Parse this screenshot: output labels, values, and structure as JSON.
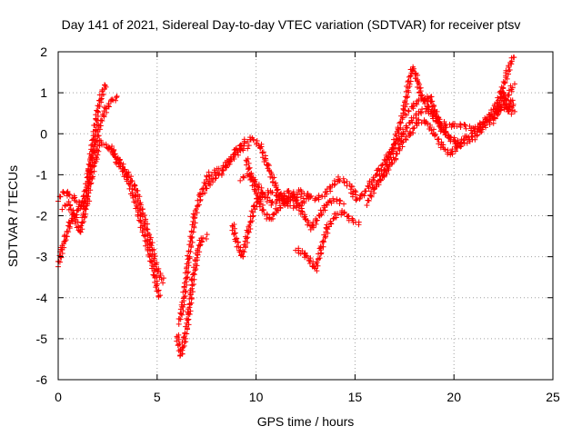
{
  "chart_data": {
    "type": "scatter",
    "title": "Day 141 of 2021, Sidereal Day-to-day VTEC variation (SDTVAR) for receiver ptsv",
    "xlabel": "GPS time / hours",
    "ylabel": "SDTVAR / TECUs",
    "xlim": [
      0,
      25
    ],
    "ylim": [
      -6,
      2
    ],
    "xticks": [
      "0",
      "5",
      "10",
      "15",
      "20",
      "25"
    ],
    "yticks": [
      "-6",
      "-5",
      "-4",
      "-3",
      "-2",
      "-1",
      "0",
      "1",
      "2"
    ],
    "grid": true,
    "marker": "+",
    "color": "#ff0000",
    "series": [
      {
        "segments": [
          [
            [
              0.0,
              -1.6
            ],
            [
              0.3,
              -1.4
            ],
            [
              0.6,
              -1.5
            ],
            [
              0.9,
              -1.6
            ],
            [
              1.2,
              -1.8
            ],
            [
              1.5,
              -1.5
            ],
            [
              1.7,
              -1.0
            ],
            [
              1.9,
              -0.6
            ],
            [
              2.1,
              -0.2
            ],
            [
              2.4,
              -0.3
            ],
            [
              2.7,
              -0.4
            ],
            [
              3.0,
              -0.7
            ],
            [
              3.4,
              -1.0
            ],
            [
              3.8,
              -1.5
            ],
            [
              4.2,
              -2.2
            ],
            [
              4.6,
              -2.9
            ],
            [
              4.9,
              -3.5
            ],
            [
              5.1,
              -4.0
            ]
          ],
          [
            [
              0.0,
              -3.2
            ],
            [
              0.2,
              -2.8
            ],
            [
              0.4,
              -2.5
            ],
            [
              0.6,
              -2.2
            ],
            [
              0.8,
              -2.0
            ],
            [
              1.1,
              -1.8
            ],
            [
              1.3,
              -1.6
            ],
            [
              1.5,
              -1.1
            ],
            [
              1.7,
              -0.4
            ],
            [
              1.9,
              0.3
            ],
            [
              2.1,
              0.8
            ],
            [
              2.3,
              1.1
            ],
            [
              2.4,
              1.2
            ]
          ],
          [
            [
              1.5,
              -1.0
            ],
            [
              1.8,
              -0.4
            ],
            [
              2.1,
              0.2
            ],
            [
              2.4,
              0.6
            ],
            [
              2.7,
              0.8
            ],
            [
              3.0,
              0.9
            ]
          ],
          [
            [
              2.6,
              -0.3
            ],
            [
              3.0,
              -0.6
            ],
            [
              3.4,
              -0.9
            ],
            [
              3.9,
              -1.3
            ],
            [
              4.3,
              -2.0
            ],
            [
              4.7,
              -2.7
            ],
            [
              5.0,
              -3.3
            ],
            [
              5.3,
              -3.6
            ]
          ],
          [
            [
              0.2,
              -1.8
            ],
            [
              0.5,
              -1.7
            ],
            [
              0.8,
              -2.0
            ],
            [
              1.1,
              -2.4
            ],
            [
              1.3,
              -2.0
            ],
            [
              1.5,
              -1.6
            ]
          ],
          [
            [
              6.0,
              -4.9
            ],
            [
              6.2,
              -5.4
            ],
            [
              6.4,
              -5.0
            ],
            [
              6.6,
              -4.4
            ],
            [
              6.8,
              -3.6
            ],
            [
              7.0,
              -3.0
            ],
            [
              7.2,
              -2.6
            ],
            [
              7.5,
              -2.5
            ]
          ],
          [
            [
              6.1,
              -4.6
            ],
            [
              6.3,
              -4.2
            ],
            [
              6.6,
              -3.0
            ],
            [
              6.9,
              -2.0
            ],
            [
              7.2,
              -1.5
            ],
            [
              7.6,
              -1.0
            ],
            [
              8.0,
              -0.9
            ],
            [
              8.4,
              -0.8
            ],
            [
              8.8,
              -0.6
            ],
            [
              9.2,
              -0.4
            ],
            [
              9.6,
              -0.3
            ]
          ],
          [
            [
              7.4,
              -1.4
            ],
            [
              7.8,
              -1.1
            ],
            [
              8.2,
              -1.0
            ],
            [
              8.6,
              -0.7
            ],
            [
              9.0,
              -0.4
            ],
            [
              9.4,
              -0.2
            ],
            [
              9.8,
              -0.1
            ],
            [
              10.2,
              -0.3
            ],
            [
              10.6,
              -0.8
            ],
            [
              11.0,
              -1.3
            ],
            [
              11.4,
              -1.6
            ],
            [
              11.8,
              -1.6
            ],
            [
              12.2,
              -1.5
            ]
          ],
          [
            [
              8.8,
              -2.2
            ],
            [
              9.0,
              -2.6
            ],
            [
              9.3,
              -3.0
            ],
            [
              9.6,
              -2.4
            ],
            [
              9.9,
              -1.8
            ],
            [
              10.3,
              -1.5
            ],
            [
              10.7,
              -1.4
            ],
            [
              11.1,
              -1.5
            ],
            [
              11.5,
              -1.7
            ],
            [
              11.9,
              -1.8
            ],
            [
              12.3,
              -1.7
            ],
            [
              12.7,
              -1.5
            ]
          ],
          [
            [
              9.5,
              -0.6
            ],
            [
              9.8,
              -1.1
            ],
            [
              10.1,
              -1.6
            ],
            [
              10.4,
              -1.9
            ],
            [
              10.7,
              -2.1
            ],
            [
              11.0,
              -1.9
            ],
            [
              11.4,
              -1.7
            ],
            [
              11.8,
              -1.5
            ],
            [
              12.2,
              -1.4
            ],
            [
              12.6,
              -1.5
            ],
            [
              13.0,
              -1.6
            ],
            [
              13.4,
              -1.5
            ],
            [
              13.8,
              -1.3
            ],
            [
              14.2,
              -1.1
            ],
            [
              14.6,
              -1.2
            ],
            [
              15.0,
              -1.4
            ]
          ],
          [
            [
              9.2,
              -1.1
            ],
            [
              9.6,
              -1.0
            ],
            [
              10.0,
              -1.2
            ],
            [
              10.4,
              -1.5
            ],
            [
              10.8,
              -1.7
            ],
            [
              11.2,
              -1.6
            ],
            [
              11.6,
              -1.4
            ],
            [
              12.0,
              -1.6
            ],
            [
              12.4,
              -2.0
            ],
            [
              12.8,
              -2.3
            ],
            [
              13.2,
              -2.0
            ],
            [
              13.6,
              -1.7
            ],
            [
              14.0,
              -1.6
            ],
            [
              14.4,
              -1.7
            ]
          ],
          [
            [
              12.0,
              -2.8
            ],
            [
              12.3,
              -2.9
            ],
            [
              12.6,
              -3.0
            ],
            [
              13.0,
              -3.3
            ],
            [
              13.3,
              -2.8
            ],
            [
              13.6,
              -2.3
            ],
            [
              14.0,
              -2.0
            ],
            [
              14.4,
              -1.9
            ],
            [
              14.8,
              -2.1
            ],
            [
              15.2,
              -2.2
            ]
          ],
          [
            [
              14.8,
              -1.4
            ],
            [
              15.1,
              -1.6
            ],
            [
              15.4,
              -1.5
            ],
            [
              15.8,
              -1.2
            ],
            [
              16.2,
              -0.9
            ],
            [
              16.6,
              -0.6
            ],
            [
              17.0,
              -0.3
            ],
            [
              17.4,
              0.0
            ],
            [
              17.8,
              0.3
            ],
            [
              18.2,
              0.5
            ],
            [
              18.6,
              0.6
            ],
            [
              19.0,
              0.4
            ],
            [
              19.4,
              0.1
            ],
            [
              19.8,
              -0.1
            ],
            [
              20.2,
              -0.2
            ],
            [
              20.6,
              -0.1
            ],
            [
              21.0,
              0.0
            ],
            [
              21.4,
              0.2
            ],
            [
              21.8,
              0.4
            ],
            [
              22.2,
              0.6
            ],
            [
              22.6,
              0.6
            ],
            [
              23.0,
              0.5
            ]
          ],
          [
            [
              15.6,
              -1.7
            ],
            [
              16.0,
              -1.3
            ],
            [
              16.4,
              -1.0
            ],
            [
              16.8,
              -0.5
            ],
            [
              17.2,
              0.1
            ],
            [
              17.5,
              0.6
            ],
            [
              17.7,
              1.2
            ],
            [
              17.9,
              1.6
            ],
            [
              18.1,
              1.4
            ],
            [
              18.3,
              1.0
            ],
            [
              18.5,
              0.8
            ],
            [
              18.8,
              0.9
            ],
            [
              19.0,
              0.6
            ],
            [
              19.3,
              0.3
            ],
            [
              19.6,
              0.2
            ],
            [
              20.0,
              0.2
            ],
            [
              20.5,
              0.2
            ],
            [
              21.0,
              0.1
            ],
            [
              21.5,
              0.3
            ],
            [
              22.0,
              0.6
            ],
            [
              22.4,
              1.0
            ],
            [
              22.7,
              1.5
            ],
            [
              23.0,
              1.9
            ]
          ],
          [
            [
              16.2,
              -1.2
            ],
            [
              16.6,
              -0.9
            ],
            [
              17.0,
              -0.6
            ],
            [
              17.4,
              -0.2
            ],
            [
              17.8,
              0.0
            ],
            [
              18.2,
              0.3
            ],
            [
              18.6,
              0.3
            ],
            [
              19.0,
              0.0
            ],
            [
              19.4,
              -0.3
            ],
            [
              19.8,
              -0.5
            ],
            [
              20.2,
              -0.3
            ],
            [
              20.6,
              -0.2
            ],
            [
              21.0,
              -0.1
            ],
            [
              21.4,
              0.1
            ],
            [
              21.8,
              0.3
            ],
            [
              22.2,
              0.5
            ],
            [
              22.6,
              0.8
            ],
            [
              23.0,
              1.2
            ]
          ],
          [
            [
              17.6,
              0.5
            ],
            [
              18.0,
              0.7
            ],
            [
              18.4,
              0.9
            ],
            [
              18.8,
              0.6
            ],
            [
              19.2,
              0.3
            ],
            [
              19.6,
              0.0
            ],
            [
              20.0,
              -0.2
            ],
            [
              20.4,
              -0.3
            ]
          ],
          [
            [
              22.0,
              0.3
            ],
            [
              22.3,
              0.7
            ],
            [
              22.5,
              1.0
            ],
            [
              22.7,
              0.6
            ],
            [
              22.9,
              0.8
            ],
            [
              23.0,
              0.6
            ]
          ]
        ]
      }
    ]
  }
}
